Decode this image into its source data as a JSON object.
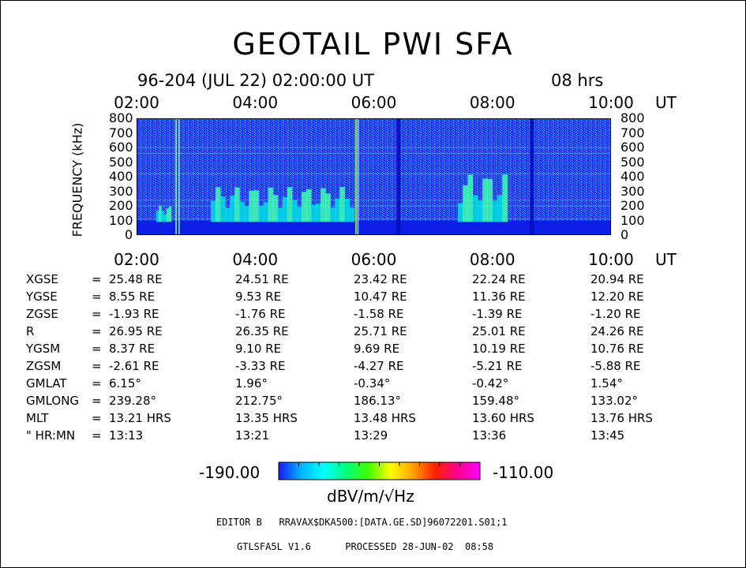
{
  "chart_data": {
    "type": "heatmap",
    "title": "GEOTAIL PWI SFA",
    "subtitle": "96-204 (JUL 22) 02:00:00 UT",
    "duration": "08 hrs",
    "x_tick_labels": [
      "02:00",
      "04:00",
      "06:00",
      "08:00",
      "10:00"
    ],
    "x_unit": "UT",
    "ylabel": "FREQUENCY (kHz)",
    "y_tick_labels": [
      "800",
      "700",
      "600",
      "500",
      "400",
      "300",
      "200",
      "100",
      "0"
    ],
    "xlim": [
      "02:00",
      "10:00"
    ],
    "ylim": [
      0,
      800
    ],
    "colorbar": {
      "min_label": "-190.00",
      "max_label": "-110.00",
      "unit": "dBV/m/√Hz",
      "colors": [
        "#1a1aff",
        "#00b4ff",
        "#00ffff",
        "#00ff80",
        "#40ff00",
        "#ffff00",
        "#ffa000",
        "#ff2000",
        "#ff0090",
        "#ff00ff"
      ]
    },
    "data_gaps_ut": [
      "06:25",
      "08:40"
    ],
    "emission_regions": [
      {
        "start": "02:20",
        "end": "02:35",
        "fmax_khz": 200
      },
      {
        "start": "03:15",
        "end": "05:40",
        "fmax_khz": 330
      },
      {
        "start": "07:25",
        "end": "08:15",
        "fmax_khz": 420
      }
    ]
  },
  "ephemeris": {
    "times": [
      "02:00",
      "04:00",
      "06:00",
      "08:00",
      "10:00"
    ],
    "rows": [
      {
        "name": "XGSE",
        "sep": "=",
        "values": [
          "25.48 RE",
          "24.51 RE",
          "23.42 RE",
          "22.24 RE",
          "20.94 RE"
        ]
      },
      {
        "name": "YGSE",
        "sep": "=",
        "values": [
          "8.55 RE",
          "9.53 RE",
          "10.47 RE",
          "11.36 RE",
          "12.20 RE"
        ]
      },
      {
        "name": "ZGSE",
        "sep": "=",
        "values": [
          "-1.93 RE",
          "-1.76 RE",
          "-1.58 RE",
          "-1.39 RE",
          "-1.20 RE"
        ]
      },
      {
        "name": "R",
        "sep": "=",
        "values": [
          "26.95 RE",
          "26.35 RE",
          "25.71 RE",
          "25.01 RE",
          "24.26 RE"
        ]
      },
      {
        "name": "YGSM",
        "sep": "=",
        "values": [
          "8.37 RE",
          "9.10 RE",
          "9.69 RE",
          "10.19 RE",
          "10.76 RE"
        ]
      },
      {
        "name": "ZGSM",
        "sep": "=",
        "values": [
          "-2.61 RE",
          "-3.33 RE",
          "-4.27 RE",
          "-5.21 RE",
          "-5.88 RE"
        ]
      },
      {
        "name": "GMLAT",
        "sep": "=",
        "values": [
          "6.15°",
          "1.96°",
          "-0.34°",
          "-0.42°",
          "1.54°"
        ]
      },
      {
        "name": "GMLONG",
        "sep": "=",
        "values": [
          "239.28°",
          "212.75°",
          "186.13°",
          "159.48°",
          "133.02°"
        ]
      },
      {
        "name": "MLT",
        "sep": "=",
        "values": [
          "13.21 HRS",
          "13.35 HRS",
          "13.48 HRS",
          "13.60 HRS",
          "13.76 HRS"
        ]
      },
      {
        "name": "\" HR:MN",
        "sep": "=",
        "values": [
          "13:13",
          "13:21",
          "13:29",
          "13:36",
          "13:45"
        ]
      }
    ]
  },
  "editor_line": "EDITOR B   RRAVAX$DKA500:[DATA.GE.SD]96072201.S01;1",
  "footer_line": "GTLSFA5L V1.6      PROCESSED 28-JUN-02  08:58"
}
